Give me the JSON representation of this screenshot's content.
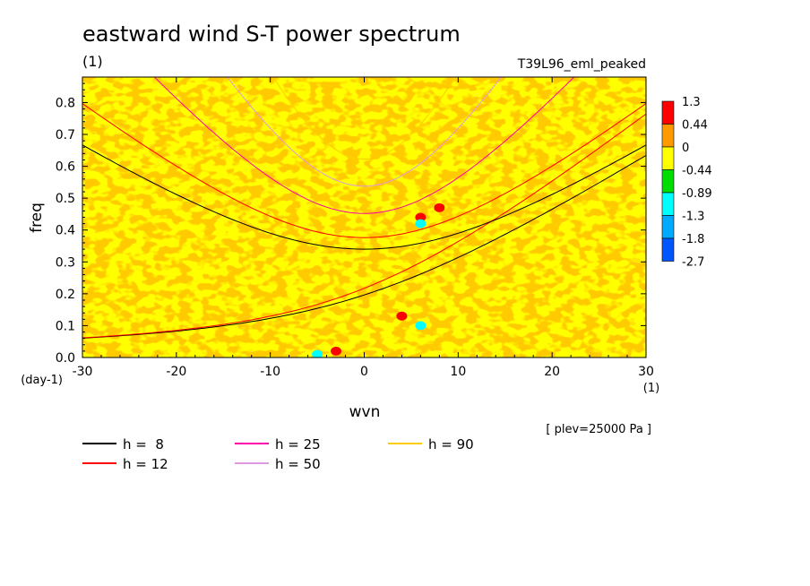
{
  "header": {
    "title": "eastward wind S-T power spectrum",
    "subtitle": "(1)",
    "run": "T39L96_eml_peaked",
    "footnote": "[ plev=25000 Pa ]"
  },
  "chart_data": {
    "type": "heatmap",
    "xlabel": "wvn",
    "xunit": "(1)",
    "ylabel": "freq",
    "yunit": "(day-1)",
    "xlim": [
      -30,
      30
    ],
    "ylim": [
      0,
      0.88
    ],
    "xticks": [
      -30,
      -20,
      -10,
      0,
      10,
      20,
      30
    ],
    "xtick_labels": [
      "-30",
      "-20",
      "-10",
      "0",
      "10",
      "20",
      "30"
    ],
    "yticks": [
      0,
      0.1,
      0.2,
      0.3,
      0.4,
      0.5,
      0.6,
      0.7,
      0.8
    ],
    "ytick_labels": [
      "0.0",
      "0.1",
      "0.2",
      "0.3",
      "0.4",
      "0.5",
      "0.6",
      "0.7",
      "0.8"
    ],
    "colorbar": {
      "levels": [
        "1.3",
        "0.44",
        "0",
        "-0.44",
        "-0.89",
        "-1.3",
        "-1.8",
        "-2.7"
      ],
      "colors": [
        "#ff0000",
        "#ff9900",
        "#ffff00",
        "#00dd00",
        "#00ffff",
        "#00aaff",
        "#0055ff"
      ]
    },
    "field": {
      "background_level_color": "#ffff00",
      "dominant_colors": [
        "#ffff00",
        "#ff9900"
      ],
      "spots": [
        {
          "x": 4,
          "y": 0.13,
          "color": "#ff0000"
        },
        {
          "x": 8,
          "y": 0.47,
          "color": "#ff0000"
        },
        {
          "x": 6,
          "y": 0.44,
          "color": "#ff0000"
        },
        {
          "x": -3,
          "y": 0.02,
          "color": "#ff0000"
        },
        {
          "x": 6,
          "y": 0.42,
          "color": "#00ffff"
        },
        {
          "x": 6,
          "y": 0.1,
          "color": "#00ffff"
        },
        {
          "x": -5,
          "y": 0.01,
          "color": "#00ffff"
        }
      ]
    },
    "legend": [
      {
        "label": "h =  8",
        "color": "#000000"
      },
      {
        "label": "h = 12",
        "color": "#ff0000"
      },
      {
        "label": "h = 25",
        "color": "#ff00aa"
      },
      {
        "label": "h = 50",
        "color": "#dd99dd"
      },
      {
        "label": "h = 90",
        "color": "#ffcc00"
      }
    ],
    "dispersion_curves": [
      {
        "name": "h =  8",
        "color": "#000000",
        "kind": "rossby_gravity"
      },
      {
        "name": "h = 12",
        "color": "#ff0000",
        "kind": "rossby_gravity"
      },
      {
        "name": "h =  8",
        "color": "#000000",
        "kind": "inertio_gravity"
      },
      {
        "name": "h = 12",
        "color": "#ff0000",
        "kind": "inertio_gravity"
      },
      {
        "name": "h = 25",
        "color": "#ff00aa",
        "kind": "inertio_gravity"
      },
      {
        "name": "h = 50",
        "color": "#dd99dd",
        "kind": "inertio_gravity"
      },
      {
        "name": "h = 90",
        "color": "#ffcc00",
        "kind": "inertio_gravity"
      }
    ]
  }
}
